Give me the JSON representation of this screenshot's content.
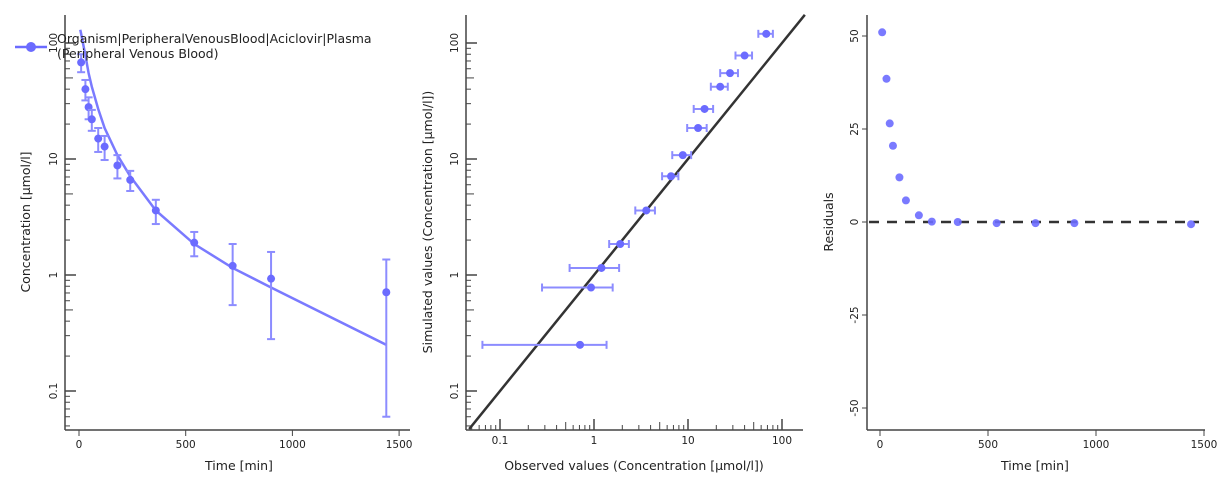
{
  "colors": {
    "series": "#6b6bff",
    "error": "#8c8cff",
    "identity": "#333333",
    "axis": "#444444"
  },
  "legend": {
    "line1": "Organism|PeripheralVenousBlood|Aciclovir|Plasma",
    "line2": "(Peripheral Venous Blood)"
  },
  "chart_data": [
    {
      "type": "scatter+line",
      "title": "",
      "xlabel": "Time [min]",
      "ylabel": "Concentration [µmol/l]",
      "xscale": "linear",
      "yscale": "log",
      "xlim": [
        -60,
        1500
      ],
      "ylim": [
        0.045,
        180
      ],
      "xticks": [
        "0",
        "500",
        "1000",
        "1500"
      ],
      "yticks": [
        "0.1",
        "1",
        "10",
        "100"
      ],
      "legend_position": "top-left",
      "observed": {
        "time": [
          10,
          30,
          45,
          60,
          90,
          120,
          180,
          240,
          360,
          540,
          720,
          900,
          1440
        ],
        "values": [
          68,
          40,
          28,
          22,
          15,
          12.8,
          8.8,
          6.6,
          3.6,
          1.9,
          1.2,
          0.93,
          0.71
        ],
        "sd": [
          12,
          8,
          6,
          4.5,
          3.5,
          3,
          2,
          1.3,
          0.85,
          0.45,
          0.65,
          0.65,
          0.65
        ]
      },
      "simulated": {
        "time": [
          10,
          30,
          45,
          60,
          90,
          120,
          180,
          240,
          360,
          540,
          720,
          900,
          1440
        ],
        "values": [
          120,
          78,
          55,
          42,
          27,
          18.5,
          10.8,
          7.1,
          3.6,
          1.85,
          1.15,
          0.78,
          0.25
        ]
      }
    },
    {
      "type": "scatter",
      "xlabel": "Observed values (Concentration [µmol/l])",
      "ylabel": "Simulated values (Concentration [µmol/l])",
      "xscale": "log",
      "yscale": "log",
      "xlim": [
        0.045,
        180
      ],
      "ylim": [
        0.045,
        180
      ],
      "xticks": [
        "0.1",
        "1",
        "10",
        "100"
      ],
      "yticks": [
        "0.1",
        "1",
        "10",
        "100"
      ],
      "identity_line": true
    },
    {
      "type": "scatter",
      "xlabel": "Time [min]",
      "ylabel": "Residuals",
      "xlim": [
        -60,
        1500
      ],
      "ylim": [
        -58,
        54
      ],
      "xticks": [
        "0",
        "500",
        "1000",
        "1500"
      ],
      "yticks": [
        "-50",
        "-25",
        "0",
        "25",
        "50"
      ],
      "residuals": [
        51,
        38.5,
        26.5,
        20.5,
        12,
        5.8,
        1.8,
        0.1,
        0,
        -0.3,
        -0.3,
        -0.3,
        -0.6
      ],
      "zero_line": "dashed"
    }
  ]
}
